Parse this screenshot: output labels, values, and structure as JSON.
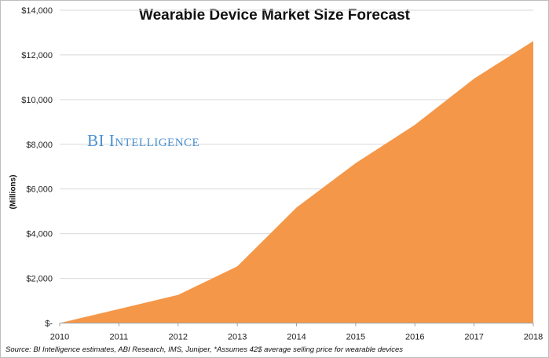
{
  "chart_data": {
    "type": "area",
    "title": "Wearable Device Market Size Forecast",
    "ylabel": "(Millions)",
    "xlabel": "",
    "categories": [
      "2010",
      "2011",
      "2012",
      "2013",
      "2014",
      "2015",
      "2016",
      "2017",
      "2018"
    ],
    "values": [
      0,
      630,
      1260,
      2540,
      5170,
      7160,
      8870,
      10940,
      12620
    ],
    "ylim": [
      0,
      14000
    ],
    "yticks": [
      0,
      2000,
      4000,
      6000,
      8000,
      10000,
      12000,
      14000
    ],
    "ytick_labels": [
      "$-",
      "$2,000",
      "$4,000",
      "$6,000",
      "$8,000",
      "$10,000",
      "$12,000",
      "$14,000"
    ],
    "grid": "horizontal",
    "legend": "none",
    "color": "#f59748",
    "watermark": "BI Intelligence",
    "source": "Source: BI Intelligence estimates, ABI Research, IMS, Juniper, *Assumes 42$ average selling price for wearable devices"
  }
}
